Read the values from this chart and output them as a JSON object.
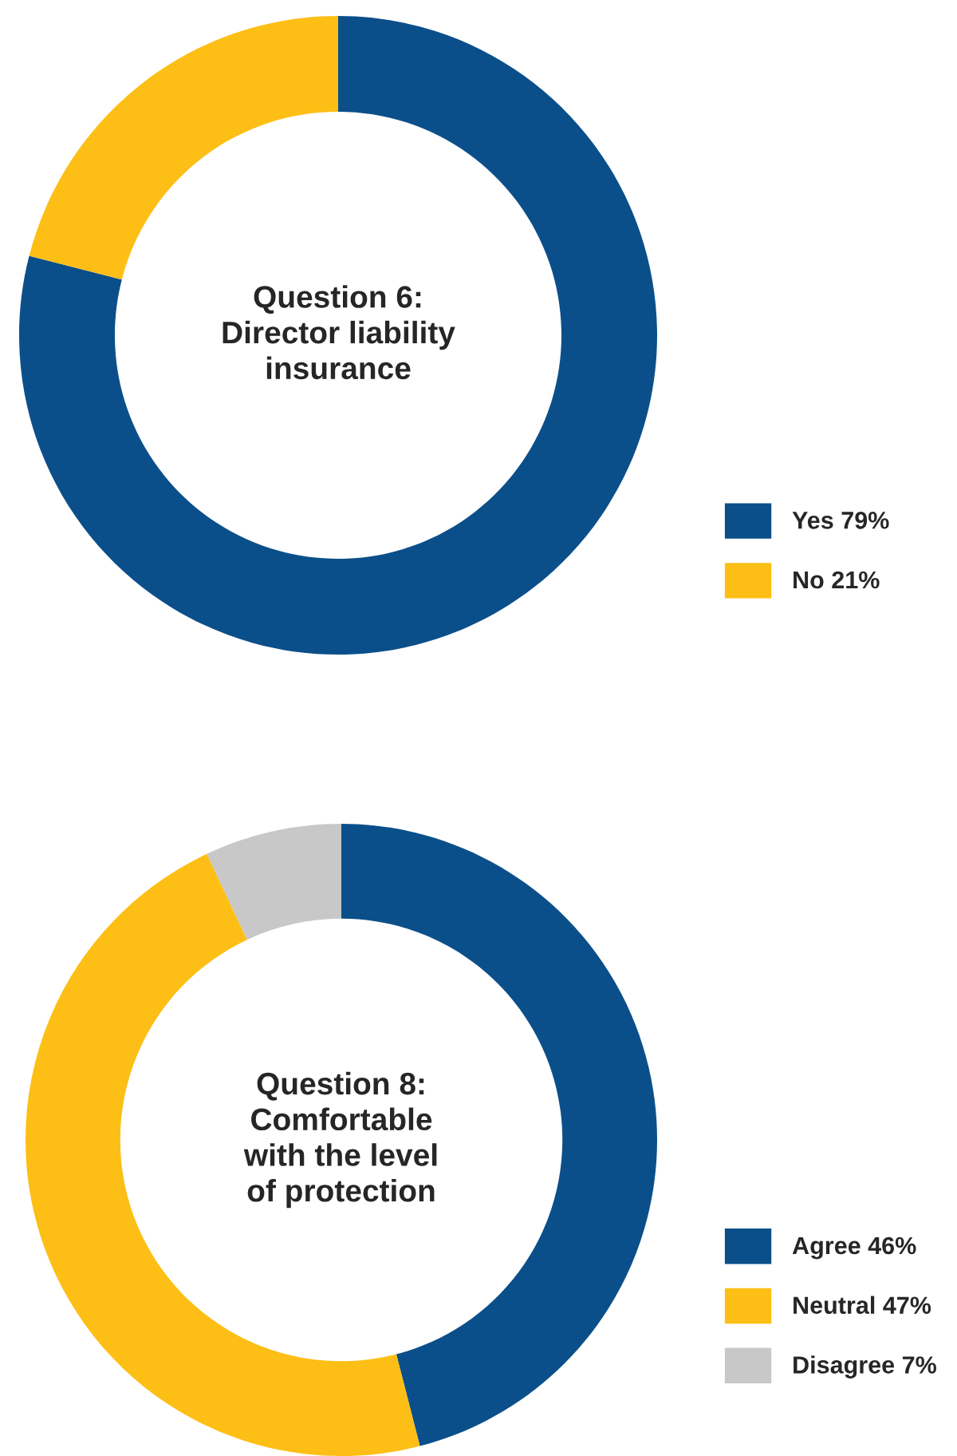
{
  "chart_data": [
    {
      "type": "donut",
      "title": "Question 6:\nDirector liability\ninsurance",
      "categories": [
        "Yes",
        "No"
      ],
      "values": [
        79,
        21
      ],
      "value_labels": [
        "79%",
        "21%"
      ],
      "colors": [
        "#0b4f8a",
        "#fdbf16"
      ],
      "legend": "right"
    },
    {
      "type": "donut",
      "title": "Question 8:\nComfortable\nwith the level\nof protection",
      "categories": [
        "Agree",
        "Neutral",
        "Disagree"
      ],
      "values": [
        46,
        47,
        7
      ],
      "value_labels": [
        "46%",
        "47%",
        "7%"
      ],
      "colors": [
        "#0b4f8a",
        "#fdbf16",
        "#c8c8c8"
      ],
      "legend": "right"
    }
  ]
}
